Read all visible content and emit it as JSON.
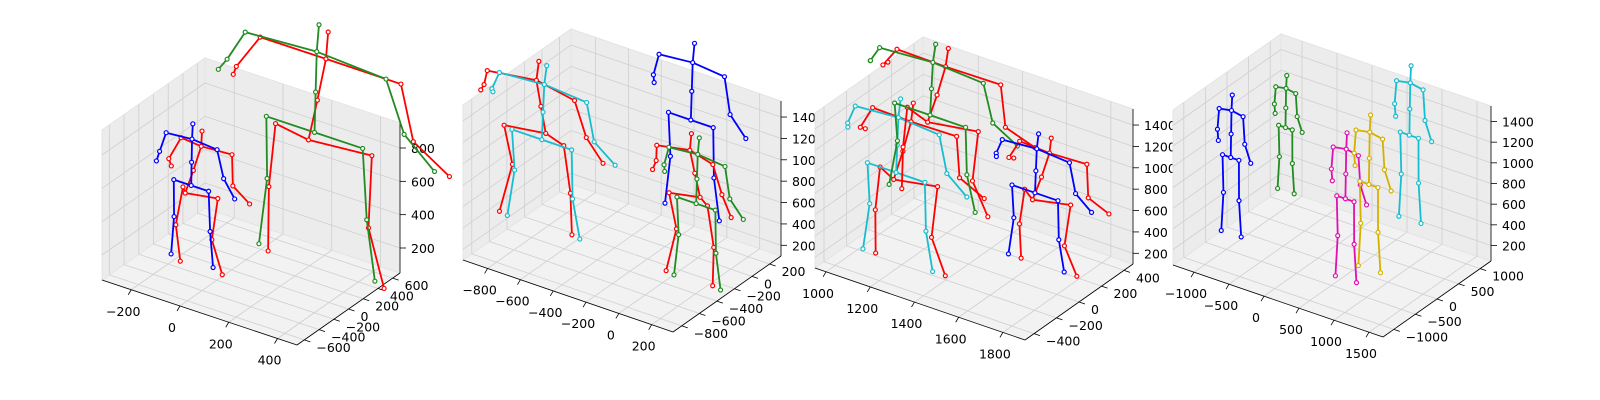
{
  "figure": {
    "panels": 4,
    "colors": {
      "gt": "#ff0000",
      "pred1": "#0000ff",
      "pred2": "#228b22",
      "pred3": "#17becf",
      "pred4": "#e011b0",
      "pred5": "#d4b100"
    }
  },
  "chart_data": [
    {
      "type": "scatter",
      "projection": "3d",
      "x_ticks": [
        "−200",
        "0",
        "200",
        "400"
      ],
      "y_ticks": [
        "−600",
        "−400",
        "−200",
        "0",
        "200",
        "400",
        "600"
      ],
      "z_ticks": [
        "200",
        "400",
        "600",
        "800"
      ],
      "xlim": [
        -320,
        480
      ],
      "ylim": [
        -700,
        700
      ],
      "zlim": [
        50,
        950
      ],
      "skeletons": [
        {
          "color": "#0000ff",
          "ref": true,
          "origin": [
            -120,
            -150,
            50
          ],
          "scale": 0.55
        },
        {
          "color": "#228b22",
          "ref": true,
          "origin": [
            250,
            300,
            50
          ],
          "scale": 0.95,
          "spread": 1.6
        }
      ]
    },
    {
      "type": "scatter",
      "projection": "3d",
      "x_ticks": [
        "−800",
        "−600",
        "−400",
        "−200",
        "0",
        "200"
      ],
      "y_ticks": [
        "−800",
        "−600",
        "−400",
        "−200",
        "0",
        "200"
      ],
      "z_ticks": [
        "200",
        "400",
        "600",
        "800",
        "1000",
        "1200",
        "1400"
      ],
      "xlim": [
        -950,
        330
      ],
      "ylim": [
        -900,
        330
      ],
      "zlim": [
        100,
        1550
      ],
      "skeletons": [
        {
          "color": "#17becf",
          "ref": true,
          "origin": [
            -780,
            -320,
            80
          ],
          "scale": 1.0,
          "spread": 1.4
        },
        {
          "color": "#0000ff",
          "ref": false,
          "origin": [
            -150,
            200,
            250
          ],
          "scale": 1.05
        },
        {
          "color": "#228b22",
          "ref": true,
          "origin": [
            150,
            -300,
            50
          ],
          "scale": 0.9
        }
      ]
    },
    {
      "type": "scatter",
      "projection": "3d",
      "x_ticks": [
        "1000",
        "1200",
        "1400",
        "1600",
        "1800"
      ],
      "y_ticks": [
        "−400",
        "−200",
        "0",
        "200",
        "400"
      ],
      "z_ticks": [
        "200",
        "400",
        "600",
        "800",
        "1000",
        "1200",
        "1400"
      ],
      "xlim": [
        950,
        1900
      ],
      "ylim": [
        -480,
        480
      ],
      "zlim": [
        100,
        1550
      ],
      "skeletons": [
        {
          "color": "#17becf",
          "ref": true,
          "origin": [
            1200,
            -250,
            100
          ],
          "scale": 1.0
        },
        {
          "color": "#228b22",
          "ref": true,
          "origin": [
            1150,
            150,
            350
          ],
          "scale": 0.95,
          "spread": 1.3
        },
        {
          "color": "#0000ff",
          "ref": true,
          "origin": [
            1650,
            100,
            150
          ],
          "scale": 0.8
        }
      ]
    },
    {
      "type": "scatter",
      "projection": "3d",
      "x_ticks": [
        "−1000",
        "−500",
        "0",
        "500",
        "1000",
        "1500"
      ],
      "y_ticks": [
        "−1000",
        "−500",
        "0",
        "500",
        "1000"
      ],
      "z_ticks": [
        "200",
        "400",
        "600",
        "800",
        "1000",
        "1200",
        "1400"
      ],
      "xlim": [
        -1300,
        1700
      ],
      "ylim": [
        -1250,
        1250
      ],
      "zlim": [
        50,
        1550
      ],
      "skeletons": [
        {
          "color": "#0000ff",
          "ref": false,
          "origin": [
            -1000,
            -400,
            100
          ],
          "scale": 0.9
        },
        {
          "color": "#228b22",
          "ref": false,
          "origin": [
            -650,
            300,
            400
          ],
          "scale": 0.75
        },
        {
          "color": "#e011b0",
          "ref": false,
          "origin": [
            700,
            -500,
            80
          ],
          "scale": 0.95
        },
        {
          "color": "#d4b100",
          "ref": false,
          "origin": [
            850,
            -200,
            120
          ],
          "scale": 1.0
        },
        {
          "color": "#17becf",
          "ref": false,
          "origin": [
            750,
            900,
            250
          ],
          "scale": 1.0
        }
      ]
    }
  ]
}
